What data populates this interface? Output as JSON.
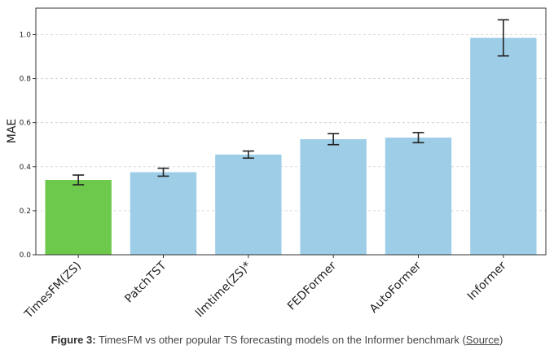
{
  "chart_data": {
    "type": "bar",
    "categories": [
      "TimesFM(ZS)",
      "PatchTST",
      "llmtime(ZS)*",
      "FEDFormer",
      "AutoFormer",
      "Informer"
    ],
    "values": [
      0.34,
      0.375,
      0.455,
      0.525,
      0.532,
      0.985
    ],
    "errors": [
      0.022,
      0.018,
      0.016,
      0.025,
      0.023,
      0.082
    ],
    "bar_colors": [
      "#6dc94c",
      "#9ecde8",
      "#9ecde8",
      "#9ecde8",
      "#9ecde8",
      "#9ecde8"
    ],
    "title": "",
    "xlabel": "",
    "ylabel": "MAE",
    "ylim": [
      0,
      1.12
    ],
    "yticks": [
      "0.0",
      "0.2",
      "0.4",
      "0.6",
      "0.8",
      "1.0"
    ],
    "grid": "horizontal dashed"
  },
  "caption": {
    "label": "Figure 3:",
    "text": " TimesFM vs other popular TS forecasting models on the Informer benchmark (",
    "link": "Source",
    "end": ")"
  }
}
